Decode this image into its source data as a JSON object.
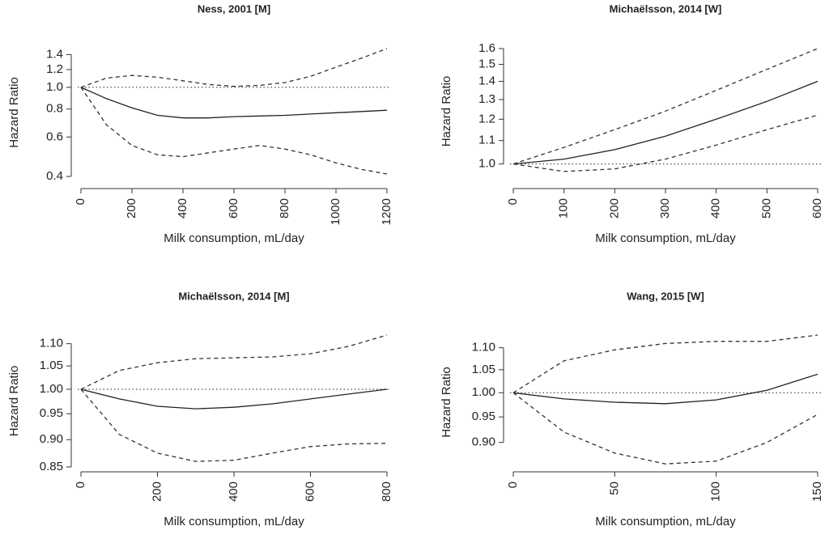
{
  "chart_data": [
    {
      "type": "line",
      "title": "Ness, 2001 [M]",
      "xlabel": "Milk consumption, mL/day",
      "ylabel": "Hazard Ratio",
      "x": [
        0,
        100,
        200,
        300,
        400,
        500,
        600,
        700,
        800,
        900,
        1000,
        1100,
        1200
      ],
      "series": [
        {
          "color": "#222222",
          "dash": "solid",
          "values": [
            1.0,
            0.89,
            0.81,
            0.75,
            0.73,
            0.73,
            0.74,
            0.745,
            0.75,
            0.76,
            0.77,
            0.78,
            0.79
          ]
        },
        {
          "color": "#333333",
          "dash": "dashed",
          "values": [
            1.0,
            0.68,
            0.55,
            0.5,
            0.49,
            0.51,
            0.53,
            0.55,
            0.53,
            0.5,
            0.46,
            0.43,
            0.41
          ]
        },
        {
          "color": "#333333",
          "dash": "dashed",
          "values": [
            1.0,
            1.1,
            1.13,
            1.11,
            1.07,
            1.03,
            1.01,
            1.02,
            1.05,
            1.12,
            1.23,
            1.35,
            1.49
          ]
        }
      ],
      "hline": 1,
      "log_y": true,
      "xlim": [
        0,
        1200
      ],
      "xticks": [
        0,
        200,
        400,
        600,
        800,
        1000,
        1200
      ],
      "ylim": [
        0.4,
        1.49
      ],
      "yticks": [
        0.4,
        0.6,
        0.8,
        {
          "value": 1,
          "label": "1.0"
        },
        1.2,
        1.4
      ]
    },
    {
      "type": "line",
      "title": "Michaëlsson, 2014 [W]",
      "xlabel": "Milk consumption, mL/day",
      "ylabel": "Hazard Ratio",
      "x": [
        0,
        100,
        200,
        300,
        400,
        500,
        600
      ],
      "series": [
        {
          "color": "#222222",
          "dash": "solid",
          "values": [
            1.0,
            1.02,
            1.06,
            1.12,
            1.2,
            1.29,
            1.4
          ]
        },
        {
          "color": "#333333",
          "dash": "dashed",
          "values": [
            1.0,
            0.97,
            0.98,
            1.02,
            1.08,
            1.15,
            1.22
          ]
        },
        {
          "color": "#333333",
          "dash": "dashed",
          "values": [
            1.0,
            1.07,
            1.15,
            1.24,
            1.35,
            1.47,
            1.6
          ]
        }
      ],
      "hline": 1,
      "log_y": true,
      "xlim": [
        0,
        600
      ],
      "xticks": [
        0,
        100,
        200,
        300,
        400,
        500,
        600
      ],
      "ylim": [
        0.96,
        1.6
      ],
      "yticks": [
        {
          "value": 1,
          "label": "1.0"
        },
        1.1,
        1.2,
        1.3,
        1.4,
        1.5,
        1.6
      ]
    },
    {
      "type": "line",
      "title": "Michaëlsson, 2014 [M]",
      "xlabel": "Milk consumption, mL/day",
      "ylabel": "Hazard Ratio",
      "x": [
        0,
        100,
        200,
        300,
        400,
        500,
        600,
        700,
        800
      ],
      "series": [
        {
          "color": "#222222",
          "dash": "solid",
          "values": [
            1.0,
            0.98,
            0.965,
            0.96,
            0.963,
            0.97,
            0.98,
            0.99,
            1.0
          ]
        },
        {
          "color": "#333333",
          "dash": "dashed",
          "values": [
            1.0,
            0.91,
            0.875,
            0.86,
            0.862,
            0.875,
            0.887,
            0.892,
            0.893
          ]
        },
        {
          "color": "#333333",
          "dash": "dashed",
          "values": [
            1.0,
            1.04,
            1.057,
            1.066,
            1.068,
            1.07,
            1.077,
            1.094,
            1.12
          ]
        }
      ],
      "hline": 1,
      "log_y": true,
      "xlim": [
        0,
        800
      ],
      "xticks": [
        0,
        200,
        400,
        600,
        800
      ],
      "ylim": [
        0.85,
        1.12
      ],
      "yticks": [
        0.85,
        {
          "value": 0.9,
          "label": "0.90"
        },
        0.95,
        {
          "value": 1,
          "label": "1.00"
        },
        1.05,
        {
          "value": 1.1,
          "label": "1.10"
        }
      ]
    },
    {
      "type": "line",
      "title": "Wang, 2015 [W]",
      "xlabel": "Milk consumption, mL/day",
      "ylabel": "Hazard Ratio",
      "x": [
        0,
        25,
        50,
        75,
        100,
        125,
        150
      ],
      "series": [
        {
          "color": "#222222",
          "dash": "solid",
          "values": [
            1.0,
            0.987,
            0.98,
            0.977,
            0.985,
            1.005,
            1.04
          ]
        },
        {
          "color": "#333333",
          "dash": "dashed",
          "values": [
            1.0,
            0.92,
            0.88,
            0.86,
            0.865,
            0.9,
            0.955
          ]
        },
        {
          "color": "#333333",
          "dash": "dashed",
          "values": [
            1.0,
            1.07,
            1.095,
            1.11,
            1.115,
            1.115,
            1.13
          ]
        }
      ],
      "hline": 1,
      "log_y": true,
      "xlim": [
        0,
        150
      ],
      "xticks": [
        0,
        50,
        100,
        150
      ],
      "ylim": [
        0.85,
        1.13
      ],
      "yticks": [
        {
          "value": 0.9,
          "label": "0.90"
        },
        0.95,
        {
          "value": 1,
          "label": "1.00"
        },
        1.05,
        {
          "value": 1.1,
          "label": "1.10"
        }
      ]
    }
  ]
}
